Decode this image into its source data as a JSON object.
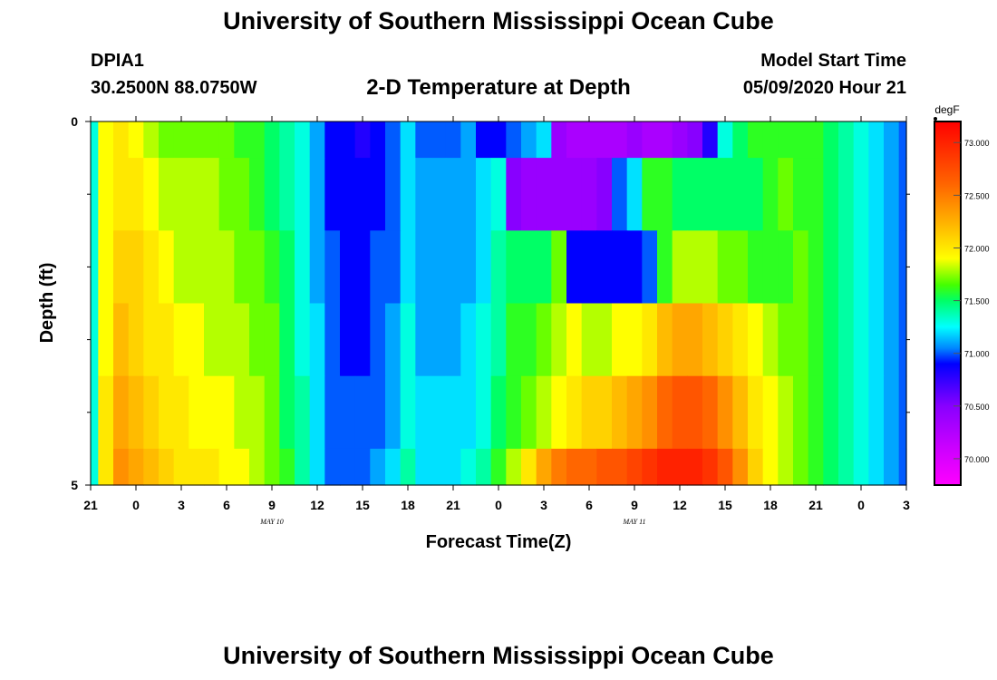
{
  "header": {
    "title": "University of Southern Mississippi Ocean Cube",
    "station": "DPIA1",
    "coordinates": "30.2500N 88.0750W",
    "plot_title": "2-D Temperature at Depth",
    "model_start_label": "Model Start Time",
    "model_start_value": "05/09/2020 Hour 21"
  },
  "footer": {
    "title": "University of Southern Mississippi Ocean Cube"
  },
  "chart_data": {
    "type": "heatmap",
    "title": "2-D Temperature at Depth",
    "xlabel": "Forecast Time(Z)",
    "ylabel": "Depth (ft)",
    "x_hours": [
      0,
      54
    ],
    "x_ticks": [
      {
        "h": 0,
        "label": "21"
      },
      {
        "h": 3,
        "label": "0"
      },
      {
        "h": 6,
        "label": "3"
      },
      {
        "h": 9,
        "label": "6"
      },
      {
        "h": 12,
        "label": "9"
      },
      {
        "h": 15,
        "label": "12"
      },
      {
        "h": 18,
        "label": "15"
      },
      {
        "h": 21,
        "label": "18"
      },
      {
        "h": 24,
        "label": "21"
      },
      {
        "h": 27,
        "label": "0"
      },
      {
        "h": 30,
        "label": "3"
      },
      {
        "h": 33,
        "label": "6"
      },
      {
        "h": 36,
        "label": "9"
      },
      {
        "h": 39,
        "label": "12"
      },
      {
        "h": 42,
        "label": "15"
      },
      {
        "h": 45,
        "label": "18"
      },
      {
        "h": 48,
        "label": "21"
      },
      {
        "h": 51,
        "label": "0"
      },
      {
        "h": 54,
        "label": "3"
      }
    ],
    "date_labels": [
      {
        "h": 15,
        "label": "MAY 10"
      },
      {
        "h": 39,
        "label": "MAY 11"
      }
    ],
    "ylim": [
      0,
      5
    ],
    "y_ticks": [
      {
        "v": 0,
        "label": "0"
      },
      {
        "v": 5,
        "label": "5"
      }
    ],
    "y_minor_ticks": [
      1,
      2,
      3,
      4
    ],
    "depth_bands": [
      0,
      0.5,
      1.5,
      2.5,
      3.5,
      4.5,
      5
    ],
    "colorbar": {
      "unit": "degF",
      "min": 69.75,
      "max": 73.2,
      "ticks": [
        {
          "v": 70.0,
          "label": "70.000"
        },
        {
          "v": 70.5,
          "label": "70.500"
        },
        {
          "v": 71.0,
          "label": "71.000"
        },
        {
          "v": 71.5,
          "label": "71.500"
        },
        {
          "v": 72.0,
          "label": "72.000"
        },
        {
          "v": 72.5,
          "label": "72.500"
        },
        {
          "v": 73.0,
          "label": "73.000"
        }
      ],
      "stops": [
        {
          "v": 69.75,
          "c": "#ff00ff"
        },
        {
          "v": 70.1,
          "c": "#cc00ff"
        },
        {
          "v": 70.5,
          "c": "#8800ff"
        },
        {
          "v": 70.9,
          "c": "#0000ff"
        },
        {
          "v": 71.05,
          "c": "#0088ff"
        },
        {
          "v": 71.25,
          "c": "#00ffff"
        },
        {
          "v": 71.5,
          "c": "#00ff66"
        },
        {
          "v": 71.65,
          "c": "#44ff00"
        },
        {
          "v": 71.9,
          "c": "#ffff00"
        },
        {
          "v": 72.2,
          "c": "#ffbb00"
        },
        {
          "v": 72.6,
          "c": "#ff6600"
        },
        {
          "v": 73.2,
          "c": "#ff0000"
        }
      ]
    },
    "hours": [
      0,
      1,
      2,
      3,
      4,
      5,
      6,
      7,
      8,
      9,
      10,
      11,
      12,
      13,
      14,
      15,
      16,
      17,
      18,
      19,
      20,
      21,
      22,
      23,
      24,
      25,
      26,
      27,
      28,
      29,
      30,
      31,
      32,
      33,
      34,
      35,
      36,
      37,
      38,
      39,
      40,
      41,
      42,
      43,
      44,
      45,
      46,
      47,
      48,
      49,
      50,
      51,
      52,
      53,
      54
    ],
    "temps": [
      [
        71.3,
        71.9,
        72.0,
        71.9,
        71.8,
        71.7,
        71.7,
        71.7,
        71.7,
        71.7,
        71.6,
        71.6,
        71.5,
        71.4,
        71.3,
        71.1,
        70.9,
        70.9,
        70.8,
        70.9,
        71.0,
        71.2,
        71.0,
        71.0,
        71.0,
        71.1,
        70.9,
        70.9,
        71.0,
        71.1,
        71.2,
        70.4,
        70.3,
        70.3,
        70.3,
        70.3,
        70.4,
        70.3,
        70.3,
        70.4,
        70.5,
        70.8,
        71.3,
        71.5,
        71.6,
        71.6,
        71.6,
        71.6,
        71.6,
        71.5,
        71.4,
        71.3,
        71.2,
        71.1,
        71.0
      ],
      [
        71.3,
        71.9,
        72.0,
        72.0,
        71.9,
        71.8,
        71.8,
        71.8,
        71.8,
        71.7,
        71.7,
        71.6,
        71.5,
        71.4,
        71.3,
        71.1,
        70.9,
        70.9,
        70.9,
        70.9,
        71.0,
        71.2,
        71.1,
        71.1,
        71.1,
        71.1,
        71.2,
        71.3,
        70.5,
        70.4,
        70.4,
        70.4,
        70.4,
        70.4,
        70.5,
        71.0,
        71.2,
        71.6,
        71.6,
        71.5,
        71.5,
        71.5,
        71.5,
        71.5,
        71.5,
        71.6,
        71.7,
        71.6,
        71.6,
        71.5,
        71.4,
        71.3,
        71.2,
        71.1,
        71.0
      ],
      [
        71.3,
        71.9,
        72.1,
        72.1,
        72.0,
        71.9,
        71.8,
        71.8,
        71.8,
        71.8,
        71.7,
        71.7,
        71.6,
        71.5,
        71.3,
        71.1,
        71.0,
        70.9,
        70.9,
        71.0,
        71.0,
        71.2,
        71.1,
        71.1,
        71.1,
        71.1,
        71.2,
        71.4,
        71.5,
        71.5,
        71.5,
        71.7,
        70.9,
        70.9,
        70.9,
        70.9,
        70.9,
        71.0,
        71.6,
        71.8,
        71.8,
        71.8,
        71.7,
        71.7,
        71.6,
        71.6,
        71.6,
        71.7,
        71.6,
        71.5,
        71.4,
        71.3,
        71.2,
        71.1,
        71.0
      ],
      [
        71.3,
        71.9,
        72.2,
        72.1,
        72.0,
        72.0,
        71.9,
        71.9,
        71.8,
        71.8,
        71.8,
        71.7,
        71.7,
        71.5,
        71.3,
        71.2,
        71.0,
        70.9,
        70.9,
        71.0,
        71.1,
        71.3,
        71.1,
        71.1,
        71.1,
        71.2,
        71.3,
        71.4,
        71.6,
        71.6,
        71.7,
        71.8,
        71.9,
        71.8,
        71.8,
        71.9,
        71.9,
        72.0,
        72.2,
        72.3,
        72.3,
        72.2,
        72.1,
        72.0,
        71.9,
        71.8,
        71.7,
        71.7,
        71.6,
        71.5,
        71.4,
        71.3,
        71.2,
        71.1,
        71.0
      ],
      [
        71.3,
        72.0,
        72.3,
        72.2,
        72.1,
        72.0,
        72.0,
        71.9,
        71.9,
        71.9,
        71.8,
        71.8,
        71.7,
        71.5,
        71.4,
        71.2,
        71.0,
        71.0,
        71.0,
        71.0,
        71.1,
        71.3,
        71.2,
        71.2,
        71.2,
        71.2,
        71.3,
        71.5,
        71.6,
        71.7,
        71.8,
        71.9,
        72.0,
        72.1,
        72.1,
        72.2,
        72.3,
        72.4,
        72.6,
        72.7,
        72.7,
        72.6,
        72.4,
        72.2,
        72.0,
        71.9,
        71.8,
        71.7,
        71.6,
        71.5,
        71.4,
        71.3,
        71.2,
        71.1,
        71.0
      ],
      [
        71.3,
        72.0,
        72.4,
        72.3,
        72.2,
        72.1,
        72.0,
        72.0,
        72.0,
        71.9,
        71.9,
        71.8,
        71.7,
        71.6,
        71.4,
        71.2,
        71.0,
        71.0,
        71.0,
        71.1,
        71.2,
        71.4,
        71.2,
        71.2,
        71.2,
        71.3,
        71.4,
        71.6,
        71.8,
        72.0,
        72.3,
        72.5,
        72.6,
        72.6,
        72.7,
        72.7,
        72.8,
        72.9,
        73.0,
        73.0,
        73.0,
        72.9,
        72.7,
        72.4,
        72.1,
        71.9,
        71.8,
        71.7,
        71.6,
        71.5,
        71.4,
        71.3,
        71.2,
        71.1,
        71.0
      ]
    ]
  }
}
